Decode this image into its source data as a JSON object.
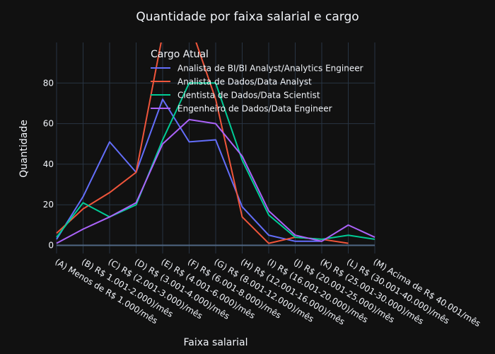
{
  "chart_data": {
    "type": "line",
    "title": "Quantidade por faixa salarial e cargo",
    "xlabel": "Faixa salarial",
    "ylabel": "Quantidade",
    "ylim": [
      -4,
      100
    ],
    "yticks": [
      0,
      20,
      40,
      60,
      80
    ],
    "grid": true,
    "legend_title": "Cargo Atual",
    "legend_position": "top-center",
    "categories": [
      "(A) Menos de R$ 1.000/mês",
      "(B) R$ 1.001-2.000)/mês",
      "(C) R$ (2.001-3.000)/mês",
      "(D) R$ (3.001-4.000)/mês",
      "(E) R$ (4.001-6.000)/mês",
      "(F) R$ (6.001-8.000)/mês",
      "(G) R$ (8.001-12.000)/mês",
      "(H) R$ (12.001-16.000)/mês",
      "(I) R$ (16.001-20.000)/mês",
      "(J) R$ (20.001-25.000)/mês",
      "(K) R$ (25.001-30.000)/mês",
      "(L) R$ (30.001-40.000)/mês",
      "(M) Acima de R$ 40.001/mês"
    ],
    "series": [
      {
        "name": "Analista de BI/BI Analyst/Analytics Engineer",
        "color": "#636efa",
        "values": [
          3,
          24,
          51,
          36,
          72,
          51,
          52,
          19,
          5,
          2,
          2,
          null,
          null
        ]
      },
      {
        "name": "Analista de Dados/Data Analyst",
        "color": "#ef553b",
        "values": [
          6,
          18,
          26,
          36,
          104,
          110,
          72,
          14,
          1,
          4,
          3,
          1,
          null
        ]
      },
      {
        "name": "Cientista de Dados/Data Scientist",
        "color": "#00cc96",
        "values": [
          4,
          21,
          14,
          20,
          52,
          80,
          80,
          42,
          15,
          4,
          3,
          5,
          3
        ]
      },
      {
        "name": "Engenheiro de Dados/Data Engineer",
        "color": "#ab63fa",
        "values": [
          1,
          8,
          14,
          21,
          50,
          62,
          60,
          44,
          17,
          5,
          2,
          10,
          4
        ]
      }
    ]
  }
}
